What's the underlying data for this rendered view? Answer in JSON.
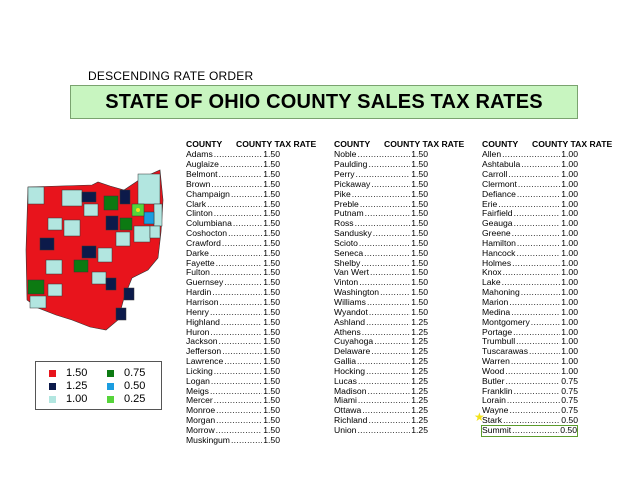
{
  "subtitle": "DESCENDING RATE ORDER",
  "title": "STATE OF OHIO COUNTY SALES TAX RATES",
  "headers": {
    "county": "COUNTY",
    "rate": "COUNTY TAX RATE"
  },
  "columns": [
    [
      [
        "Adams",
        "1.50"
      ],
      [
        "Auglaize",
        "1.50"
      ],
      [
        "Belmont",
        "1.50"
      ],
      [
        "Brown",
        "1.50"
      ],
      [
        "Champaign",
        "1.50"
      ],
      [
        "Clark",
        "1.50"
      ],
      [
        "Clinton",
        "1.50"
      ],
      [
        "Columbiana",
        "1.50"
      ],
      [
        "Coshocton",
        "1.50"
      ],
      [
        "Crawford",
        "1.50"
      ],
      [
        "Darke",
        "1.50"
      ],
      [
        "Fayette",
        "1.50"
      ],
      [
        "Fulton",
        "1.50"
      ],
      [
        "Guernsey",
        "1.50"
      ],
      [
        "Hardin",
        "1.50"
      ],
      [
        "Harrison",
        "1.50"
      ],
      [
        "Henry",
        "1.50"
      ],
      [
        "Highland",
        "1.50"
      ],
      [
        "Huron",
        "1.50"
      ],
      [
        "Jackson",
        "1.50"
      ],
      [
        "Jefferson",
        "1.50"
      ],
      [
        "Lawrence",
        "1.50"
      ],
      [
        "Licking",
        "1.50"
      ],
      [
        "Logan",
        "1.50"
      ],
      [
        "Meigs",
        "1.50"
      ],
      [
        "Mercer",
        "1.50"
      ],
      [
        "Monroe",
        "1.50"
      ],
      [
        "Morgan",
        "1.50"
      ],
      [
        "Morrow",
        "1.50"
      ],
      [
        "Muskingum",
        "1.50"
      ]
    ],
    [
      [
        "Noble",
        "1.50"
      ],
      [
        "Paulding",
        "1.50"
      ],
      [
        "Perry",
        "1.50"
      ],
      [
        "Pickaway",
        "1.50"
      ],
      [
        "Pike",
        "1.50"
      ],
      [
        "Preble",
        "1.50"
      ],
      [
        "Putnam",
        "1.50"
      ],
      [
        "Ross",
        "1.50"
      ],
      [
        "Sandusky",
        "1.50"
      ],
      [
        "Scioto",
        "1.50"
      ],
      [
        "Seneca",
        "1.50"
      ],
      [
        "Shelby",
        "1.50"
      ],
      [
        "Van Wert",
        "1.50"
      ],
      [
        "Vinton",
        "1.50"
      ],
      [
        "Washington",
        "1.50"
      ],
      [
        "Williams",
        "1.50"
      ],
      [
        "Wyandot",
        "1.50"
      ],
      [
        "Ashland",
        "1.25"
      ],
      [
        "Athens",
        "1.25"
      ],
      [
        "Cuyahoga",
        "1.25"
      ],
      [
        "Delaware",
        "1.25"
      ],
      [
        "Gallia",
        "1.25"
      ],
      [
        "Hocking",
        "1.25"
      ],
      [
        "Lucas",
        "1.25"
      ],
      [
        "Madison",
        "1.25"
      ],
      [
        "Miami",
        "1.25"
      ],
      [
        "Ottawa",
        "1.25"
      ],
      [
        "Richland",
        "1.25"
      ],
      [
        "Union",
        "1.25"
      ]
    ],
    [
      [
        "Allen",
        "1.00"
      ],
      [
        "Ashtabula",
        "1.00"
      ],
      [
        "Carroll",
        "1.00"
      ],
      [
        "Clermont",
        "1.00"
      ],
      [
        "Defiance",
        "1.00"
      ],
      [
        "Erie",
        "1.00"
      ],
      [
        "Fairfield",
        "1.00"
      ],
      [
        "Geauga",
        "1.00"
      ],
      [
        "Greene",
        "1.00"
      ],
      [
        "Hamilton",
        "1.00"
      ],
      [
        "Hancock",
        "1.00"
      ],
      [
        "Holmes",
        "1.00"
      ],
      [
        "Knox",
        "1.00"
      ],
      [
        "Lake",
        "1.00"
      ],
      [
        "Mahoning",
        "1.00"
      ],
      [
        "Marion",
        "1.00"
      ],
      [
        "Medina",
        "1.00"
      ],
      [
        "Montgomery",
        "1.00"
      ],
      [
        "Portage",
        "1.00"
      ],
      [
        "Trumbull",
        "1.00"
      ],
      [
        "Tuscarawas",
        "1.00"
      ],
      [
        "Warren",
        "1.00"
      ],
      [
        "Wood",
        "1.00"
      ],
      [
        "Butler",
        "0.75"
      ],
      [
        "Franklin",
        "0.75"
      ],
      [
        "Lorain",
        "0.75"
      ],
      [
        "Wayne",
        "0.75"
      ],
      [
        "Stark",
        "0.50"
      ],
      [
        "Summit",
        "0.50"
      ]
    ]
  ],
  "highlight_county": "Summit",
  "legend": [
    {
      "label": "1.50",
      "color": "#e8141c"
    },
    {
      "label": "1.25",
      "color": "#0c1a4a"
    },
    {
      "label": "1.00",
      "color": "#b2e6e0"
    },
    {
      "label": "0.75",
      "color": "#0c7a12"
    },
    {
      "label": "0.50",
      "color": "#1b9de0"
    },
    {
      "label": "0.25",
      "color": "#56d43a"
    }
  ]
}
